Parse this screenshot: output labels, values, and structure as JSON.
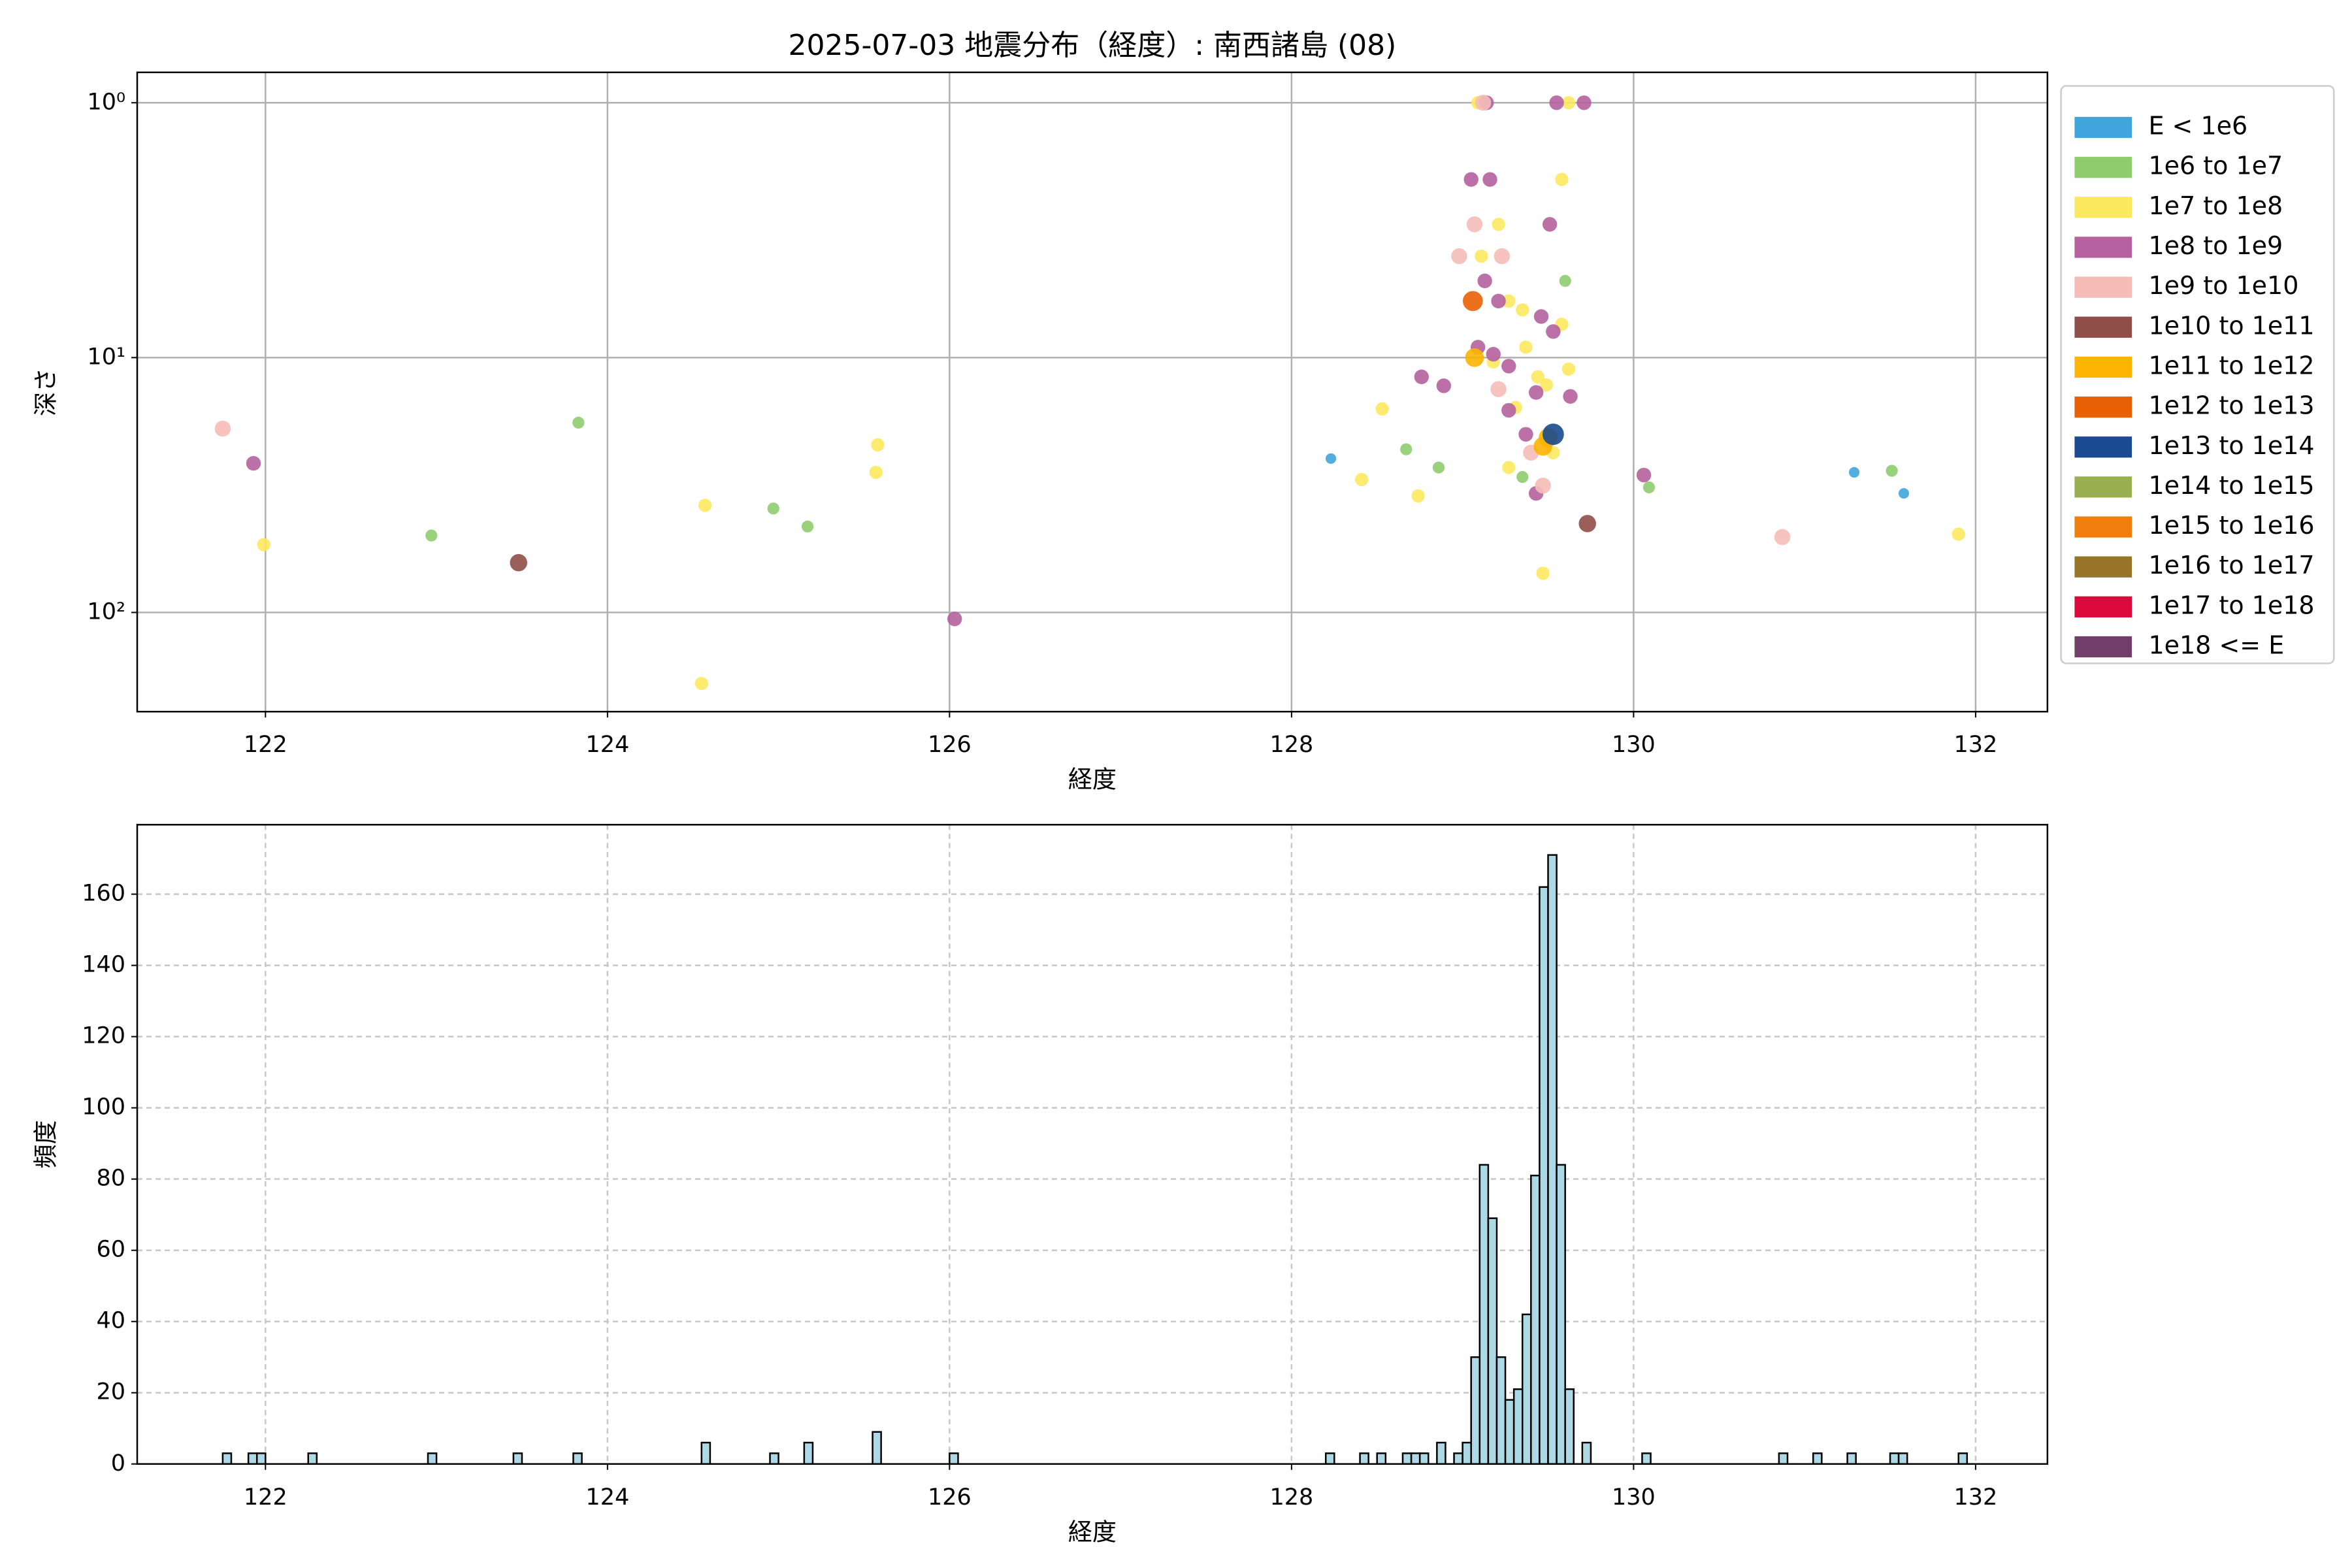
{
  "chart_data": [
    {
      "type": "scatter",
      "title": "2025-07-03 地震分布（経度）: 南西諸島 (08)",
      "xlabel": "経度",
      "ylabel": "深さ",
      "xlim": [
        121.25,
        132.42
      ],
      "ylim": [
        245,
        0.76
      ],
      "log_y": true,
      "grid": true,
      "legend": "outside upper right",
      "xticks": [
        122,
        124,
        126,
        128,
        130,
        132
      ],
      "yticks": [
        {
          "value": 1,
          "label": "10⁰"
        },
        {
          "value": 10,
          "label": "10¹"
        },
        {
          "value": 100,
          "label": "10²"
        }
      ],
      "series": [
        {
          "name": "E < 1e6",
          "color": "#3fa5dc",
          "x": [
            128.23,
            131.29,
            131.58
          ],
          "y": [
            24.9,
            28.2,
            34.1
          ]
        },
        {
          "name": "1e6 to 1e7",
          "color": "#8fcc6e",
          "x": [
            123.83,
            122.97,
            124.97,
            125.17,
            128.67,
            128.86,
            130.09,
            131.51,
            129.35,
            129.6
          ],
          "y": [
            18.0,
            49.9,
            39.1,
            46.0,
            22.9,
            27.0,
            32.3,
            27.8,
            29.4,
            5.0
          ]
        },
        {
          "name": "1e7 to 1e8",
          "color": "#fde95f",
          "x": [
            121.99,
            124.57,
            124.55,
            125.58,
            125.57,
            128.53,
            128.41,
            128.74,
            131.9,
            129.47,
            129.09,
            129.62,
            129.58,
            129.21,
            129.11,
            129.27,
            129.37,
            129.18,
            129.49,
            129.31,
            129.53,
            129.27,
            129.44,
            129.62,
            129.35,
            129.58
          ],
          "y": [
            54.2,
            38.0,
            190,
            22.0,
            28.2,
            15.9,
            30.1,
            34.9,
            49.3,
            70.2,
            1.0,
            1.0,
            2.0,
            3.0,
            4.0,
            6.0,
            9.1,
            10.4,
            12.8,
            15.7,
            23.6,
            27.0,
            11.9,
            11.1,
            6.5,
            7.4
          ]
        },
        {
          "name": "1e8 to 1e9",
          "color": "#b5609f",
          "x": [
            121.93,
            126.03,
            130.06,
            128.76,
            128.89,
            129.14,
            129.55,
            129.71,
            129.05,
            129.16,
            129.51,
            129.13,
            129.21,
            129.46,
            129.09,
            129.27,
            129.43,
            129.27,
            129.37,
            129.43,
            129.63,
            129.53,
            129.18
          ],
          "y": [
            26.0,
            106,
            28.9,
            11.9,
            12.9,
            1.0,
            1.0,
            1.0,
            2.0,
            2.0,
            3.0,
            5.0,
            6.0,
            6.9,
            9.1,
            10.8,
            13.7,
            16.1,
            20.0,
            34.1,
            14.2,
            7.9,
            9.7
          ]
        },
        {
          "name": "1e9 to 1e10",
          "color": "#f5bcb8",
          "x": [
            121.75,
            130.87,
            129.12,
            128.98,
            129.23,
            129.07,
            129.47,
            129.21,
            129.4
          ],
          "y": [
            19.0,
            50.6,
            1.0,
            4.0,
            4.0,
            3.0,
            31.8,
            13.3,
            23.6
          ]
        },
        {
          "name": "1e10 to 1e11",
          "color": "#8f4e47",
          "x": [
            123.48,
            129.73
          ],
          "y": [
            63.8,
            44.8
          ]
        },
        {
          "name": "1e11 to 1e12",
          "color": "#fbb400",
          "x": [
            129.47,
            129.5,
            129.07
          ],
          "y": [
            22.3,
            20.6,
            10.0
          ]
        },
        {
          "name": "1e12 to 1e13",
          "color": "#ea6004",
          "x": [
            129.06
          ],
          "y": [
            6.0
          ]
        },
        {
          "name": "1e13 to 1e14",
          "color": "#1a4a8f",
          "x": [
            129.53
          ],
          "y": [
            20.0
          ]
        },
        {
          "name": "1e14 to 1e15",
          "color": "#9aaf50",
          "x": [],
          "y": []
        },
        {
          "name": "1e15 to 1e16",
          "color": "#f07e0c",
          "x": [],
          "y": []
        },
        {
          "name": "1e16 to 1e17",
          "color": "#987428",
          "x": [],
          "y": []
        },
        {
          "name": "1e17 to 1e18",
          "color": "#dc0a3c",
          "x": [],
          "y": []
        },
        {
          "name": "1e18 <= E",
          "color": "#723d6b",
          "x": [],
          "y": []
        }
      ]
    },
    {
      "type": "histogram",
      "xlabel": "経度",
      "ylabel": "頻度",
      "xlim": [
        121.25,
        132.42
      ],
      "ylim": [
        0,
        179.5
      ],
      "grid": true,
      "color": "#add8e6",
      "edgecolor": "#000000",
      "xticks": [
        122,
        124,
        126,
        128,
        130,
        132
      ],
      "yticks": [
        0,
        20,
        40,
        60,
        80,
        100,
        120,
        140,
        160
      ],
      "bins": [
        121.75,
        121.8,
        121.85,
        121.9,
        121.95,
        122,
        122.05,
        122.1,
        122.15,
        122.2,
        122.25,
        122.3,
        122.35,
        122.4,
        122.45,
        122.5,
        122.55,
        122.6,
        122.65,
        122.7,
        122.75,
        122.8,
        122.85,
        122.9,
        122.95,
        123,
        123.05,
        123.1,
        123.15,
        123.2,
        123.25,
        123.3,
        123.35,
        123.4,
        123.45,
        123.5,
        123.55,
        123.6,
        123.65,
        123.7,
        123.75,
        123.8,
        123.85,
        123.9,
        123.95,
        124,
        124.05,
        124.1,
        124.15,
        124.2,
        124.25,
        124.3,
        124.35,
        124.4,
        124.45,
        124.5,
        124.55,
        124.6,
        124.65,
        124.7,
        124.75,
        124.8,
        124.85,
        124.9,
        124.95,
        125,
        125.05,
        125.1,
        125.15,
        125.2,
        125.25,
        125.3,
        125.35,
        125.4,
        125.45,
        125.5,
        125.55,
        125.6,
        125.65,
        125.7,
        125.75,
        125.8,
        125.85,
        125.9,
        125.95,
        126,
        126.05,
        126.1,
        126.15,
        126.2,
        126.25,
        126.3,
        126.35,
        126.4,
        126.45,
        126.5,
        126.55,
        126.6,
        126.65,
        126.7,
        126.75,
        126.8,
        126.85,
        126.9,
        126.95,
        127,
        127.05,
        127.1,
        127.15,
        127.2,
        127.25,
        127.3,
        127.35,
        127.4,
        127.45,
        127.5,
        127.55,
        127.6,
        127.65,
        127.7,
        127.75,
        127.8,
        127.85,
        127.9,
        127.95,
        128,
        128.05,
        128.1,
        128.15,
        128.2,
        128.25,
        128.3,
        128.35,
        128.4,
        128.45,
        128.5,
        128.55,
        128.6,
        128.65,
        128.7,
        128.75,
        128.8,
        128.85,
        128.9,
        128.95,
        129,
        129.05,
        129.1,
        129.15,
        129.2,
        129.25,
        129.3,
        129.35,
        129.4,
        129.45,
        129.5,
        129.55,
        129.6,
        129.65,
        129.7,
        129.75,
        129.8,
        129.85,
        129.9,
        129.95,
        130,
        130.05,
        130.1,
        130.15,
        130.2,
        130.25,
        130.3,
        130.35,
        130.4,
        130.45,
        130.5,
        130.55,
        130.6,
        130.65,
        130.7,
        130.75,
        130.8,
        130.85,
        130.9,
        130.95,
        131,
        131.05,
        131.1,
        131.15,
        131.2,
        131.25,
        131.3,
        131.35,
        131.4,
        131.45,
        131.5,
        131.55,
        131.6,
        131.65,
        131.7,
        131.75,
        131.8,
        131.85,
        131.9,
        131.95
      ],
      "values": [
        3,
        0,
        0,
        3,
        3,
        0,
        0,
        0,
        0,
        0,
        3,
        0,
        0,
        0,
        0,
        0,
        0,
        0,
        0,
        0,
        0,
        0,
        0,
        0,
        3,
        0,
        0,
        0,
        0,
        0,
        0,
        0,
        0,
        0,
        3,
        0,
        0,
        0,
        0,
        0,
        0,
        3,
        0,
        0,
        0,
        0,
        0,
        0,
        0,
        0,
        0,
        0,
        0,
        0,
        0,
        0,
        6,
        0,
        0,
        0,
        0,
        0,
        0,
        0,
        3,
        0,
        0,
        0,
        6,
        0,
        0,
        0,
        0,
        0,
        0,
        0,
        9,
        0,
        0,
        0,
        0,
        0,
        0,
        0,
        0,
        3,
        0,
        0,
        0,
        0,
        0,
        0,
        0,
        0,
        0,
        0,
        0,
        0,
        0,
        0,
        0,
        0,
        0,
        0,
        0,
        0,
        0,
        0,
        0,
        0,
        0,
        0,
        0,
        0,
        0,
        0,
        0,
        0,
        0,
        0,
        0,
        0,
        0,
        0,
        0,
        0,
        0,
        0,
        0,
        3,
        0,
        0,
        0,
        3,
        0,
        3,
        0,
        0,
        3,
        3,
        3,
        0,
        6,
        0,
        3,
        6,
        30,
        84,
        69,
        30,
        18,
        21,
        42,
        81,
        162,
        171,
        84,
        21,
        0,
        6,
        0,
        0,
        0,
        0,
        0,
        0,
        3,
        0,
        0,
        0,
        0,
        0,
        0,
        0,
        0,
        0,
        0,
        0,
        0,
        0,
        0,
        0,
        3,
        0,
        0,
        0,
        3,
        0,
        0,
        0,
        3,
        0,
        0,
        0,
        0,
        3,
        3,
        0,
        0,
        0,
        0,
        0,
        0,
        3
      ]
    }
  ]
}
